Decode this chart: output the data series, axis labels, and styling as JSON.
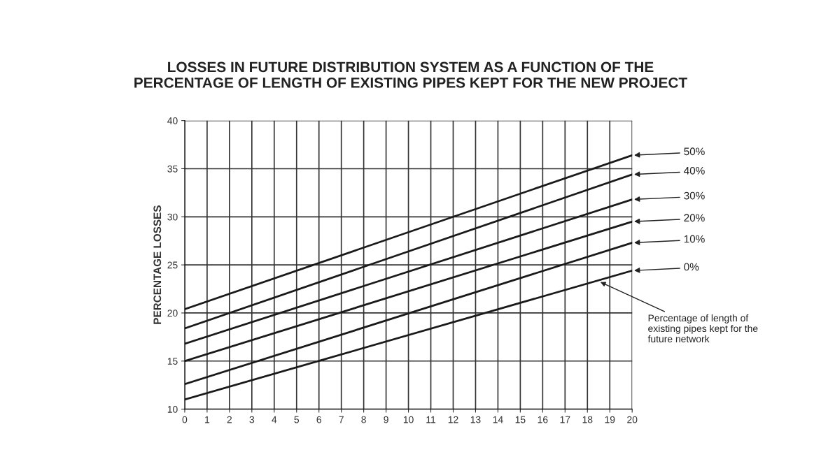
{
  "chart_data": {
    "type": "line",
    "title": "LOSSES IN FUTURE DISTRIBUTION SYSTEM AS A FUNCTION OF THE\nPERCENTAGE OF LENGTH OF EXISTING PIPES KEPT FOR THE NEW PROJECT",
    "ylabel": "PERCENTAGE LOSSES",
    "x": [
      0,
      20
    ],
    "series": [
      {
        "name": "50%",
        "color": "#1a1a1a",
        "values": [
          20.4,
          36.4
        ]
      },
      {
        "name": "40%",
        "color": "#1a1a1a",
        "values": [
          18.4,
          34.4
        ]
      },
      {
        "name": "30%",
        "color": "#1a1a1a",
        "values": [
          16.8,
          31.8
        ]
      },
      {
        "name": "20%",
        "color": "#1a1a1a",
        "values": [
          15.0,
          29.5
        ]
      },
      {
        "name": "10%",
        "color": "#1a1a1a",
        "values": [
          12.6,
          27.3
        ]
      },
      {
        "name": "0%",
        "color": "#1a1a1a",
        "values": [
          11.0,
          24.4
        ]
      }
    ],
    "annotations": [
      {
        "text": "Percentage of length of\nexisting pipes kept for the\nfuture network",
        "x": 18.5,
        "y": 23.3
      }
    ],
    "xlim": [
      0,
      20
    ],
    "ylim": [
      10,
      40
    ],
    "xticks": [
      0,
      1,
      2,
      3,
      4,
      5,
      6,
      7,
      8,
      9,
      10,
      11,
      12,
      13,
      14,
      15,
      16,
      17,
      18,
      19,
      20
    ],
    "yticks": [
      10,
      15,
      20,
      25,
      30,
      35,
      40
    ],
    "grid": true,
    "legend": "right",
    "marker": "none",
    "line_style": "solid"
  }
}
